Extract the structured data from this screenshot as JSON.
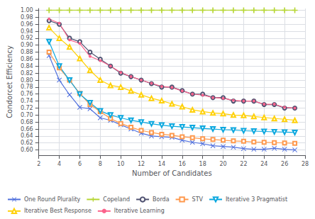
{
  "chart_data": {
    "type": "line",
    "xlabel": "Number of Candidates",
    "ylabel": "Condorcet Efficiency",
    "x": [
      3,
      4,
      5,
      6,
      7,
      8,
      9,
      10,
      11,
      12,
      13,
      14,
      15,
      16,
      17,
      18,
      19,
      20,
      21,
      22,
      23,
      24,
      25,
      26,
      27
    ],
    "series": [
      {
        "name": "One Round Plurality",
        "marker": "x",
        "values": [
          0.87,
          0.8,
          0.758,
          0.722,
          0.718,
          0.692,
          0.685,
          0.672,
          0.66,
          0.648,
          0.64,
          0.638,
          0.636,
          0.628,
          0.622,
          0.618,
          0.612,
          0.61,
          0.608,
          0.604,
          0.602,
          0.602,
          0.605,
          0.602,
          0.6
        ]
      },
      {
        "name": "Copeland",
        "marker": "plus",
        "values": [
          1.0,
          1.0,
          1.0,
          1.0,
          1.0,
          1.0,
          1.0,
          1.0,
          1.0,
          1.0,
          1.0,
          1.0,
          1.0,
          1.0,
          1.0,
          1.0,
          1.0,
          1.0,
          1.0,
          1.0,
          1.0,
          1.0,
          1.0,
          1.0,
          1.0
        ]
      },
      {
        "name": "Borda",
        "marker": "circle",
        "values": [
          0.97,
          0.96,
          0.92,
          0.91,
          0.88,
          0.86,
          0.84,
          0.82,
          0.81,
          0.8,
          0.79,
          0.78,
          0.78,
          0.77,
          0.76,
          0.76,
          0.75,
          0.75,
          0.74,
          0.74,
          0.74,
          0.73,
          0.73,
          0.72,
          0.72
        ]
      },
      {
        "name": "STV",
        "marker": "square",
        "values": [
          0.88,
          0.835,
          0.8,
          0.762,
          0.73,
          0.71,
          0.69,
          0.676,
          0.665,
          0.656,
          0.65,
          0.645,
          0.642,
          0.638,
          0.635,
          0.632,
          0.63,
          0.628,
          0.626,
          0.625,
          0.623,
          0.622,
          0.621,
          0.62,
          0.619
        ]
      },
      {
        "name": "Iterative 3 Pragmatist",
        "marker": "triangle_down",
        "values": [
          0.91,
          0.84,
          0.8,
          0.76,
          0.735,
          0.712,
          0.7,
          0.692,
          0.685,
          0.68,
          0.675,
          0.671,
          0.668,
          0.666,
          0.664,
          0.662,
          0.66,
          0.658,
          0.657,
          0.655,
          0.654,
          0.653,
          0.652,
          0.651,
          0.65
        ]
      },
      {
        "name": "Iterative Best Response",
        "marker": "triangle_up",
        "values": [
          0.95,
          0.92,
          0.895,
          0.862,
          0.828,
          0.8,
          0.785,
          0.78,
          0.769,
          0.758,
          0.748,
          0.741,
          0.732,
          0.724,
          0.715,
          0.71,
          0.706,
          0.704,
          0.7,
          0.699,
          0.696,
          0.693,
          0.69,
          0.688,
          0.685
        ]
      },
      {
        "name": "Iterative Learning",
        "marker": "point",
        "values": [
          0.975,
          0.963,
          0.915,
          0.905,
          0.868,
          0.856,
          0.84,
          0.822,
          0.81,
          0.8,
          0.791,
          0.782,
          0.779,
          0.769,
          0.76,
          0.757,
          0.75,
          0.748,
          0.742,
          0.74,
          0.74,
          0.731,
          0.731,
          0.722,
          0.72
        ]
      }
    ],
    "xlim": [
      2,
      28
    ],
    "ylim": [
      0.585,
      1.005
    ],
    "xticks": [
      2,
      4,
      6,
      8,
      10,
      12,
      14,
      16,
      18,
      20,
      22,
      24,
      26,
      28
    ],
    "yticks": [
      {
        "value": 0.6,
        "label": "0.60"
      },
      {
        "value": 0.62,
        "label": "0.62"
      },
      {
        "value": 0.64,
        "label": "0.64"
      },
      {
        "value": 0.66,
        "label": "0.66"
      },
      {
        "value": 0.68,
        "label": "0.68"
      },
      {
        "value": 0.7,
        "label": "0.70"
      },
      {
        "value": 0.72,
        "label": "0.72"
      },
      {
        "value": 0.74,
        "label": "0.74"
      },
      {
        "value": 0.76,
        "label": "0.76"
      },
      {
        "value": 0.78,
        "label": "0.78"
      },
      {
        "value": 0.8,
        "label": "0.80"
      },
      {
        "value": 0.82,
        "label": "0.82"
      },
      {
        "value": 0.84,
        "label": "0.84"
      },
      {
        "value": 0.86,
        "label": "0.86"
      },
      {
        "value": 0.88,
        "label": "0.88"
      },
      {
        "value": 0.9,
        "label": "0.90"
      },
      {
        "value": 0.92,
        "label": "0.92"
      },
      {
        "value": 0.94,
        "label": "0.94"
      },
      {
        "value": 0.96,
        "label": "0.96"
      },
      {
        "value": 0.98,
        "label": "0.98"
      },
      {
        "value": 1.0,
        "label": "1.00"
      }
    ],
    "grid": true,
    "legend": "bottom"
  }
}
